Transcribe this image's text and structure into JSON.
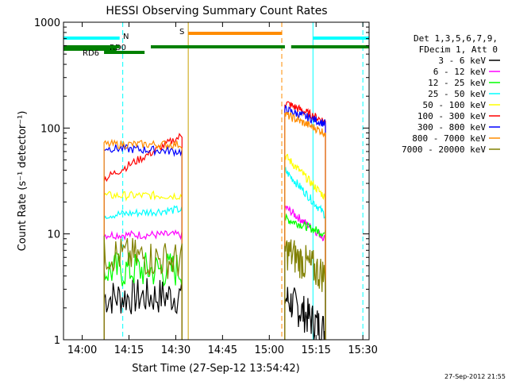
{
  "chart_data": {
    "type": "line",
    "title": "HESSI Observing Summary Count Rates",
    "xlabel": "Start Time (27-Sep-12 13:54:42)",
    "ylabel": "Count Rate (s⁻¹ detector⁻¹)",
    "y_scale": "log",
    "ylim": [
      1,
      1000
    ],
    "xlim": [
      "13:54",
      "15:32"
    ],
    "x_ticks": [
      "14:00",
      "14:15",
      "14:30",
      "14:45",
      "15:00",
      "15:15",
      "15:30"
    ],
    "y_ticks": [
      "1",
      "10",
      "100",
      "1000"
    ],
    "timestamp": "27-Sep-2012 21:55",
    "legend": {
      "header": [
        "Det 1,3,5,6,7,9,",
        "FDecim 1, Att 0"
      ],
      "placement": "right"
    },
    "flags": [
      {
        "label": "RD0",
        "color": "#008000",
        "segments": [
          [
            "13:54",
            "14:11"
          ]
        ]
      },
      {
        "label": "RD6",
        "color": "#008000",
        "segments": [
          [
            "14:07",
            "14:20"
          ]
        ]
      },
      {
        "label": "",
        "color": "#008000",
        "segments": [
          [
            "13:54",
            "14:12"
          ],
          [
            "14:22",
            "15:05"
          ],
          [
            "15:07",
            "15:32"
          ]
        ]
      },
      {
        "label": "N",
        "color": "#00ffff",
        "segments": [
          [
            "13:54",
            "14:12"
          ],
          [
            "15:14",
            "15:32"
          ]
        ]
      },
      {
        "label": "S",
        "color": "#ff8c00",
        "segments": [
          [
            "14:34",
            "15:04"
          ]
        ]
      }
    ],
    "vlines": [
      {
        "t": "13:54",
        "color": "#00ffff",
        "style": "solid"
      },
      {
        "t": "14:13",
        "color": "#00ffff",
        "style": "dashed"
      },
      {
        "t": "14:34",
        "color": "#c8a000",
        "style": "solid"
      },
      {
        "t": "15:04",
        "color": "#ff8c00",
        "style": "dashed"
      },
      {
        "t": "15:14",
        "color": "#00ffff",
        "style": "solid"
      },
      {
        "t": "15:30",
        "color": "#00ffff",
        "style": "dashed"
      }
    ],
    "segments": [
      [
        "14:07",
        "14:32"
      ],
      [
        "15:05",
        "15:18"
      ]
    ],
    "series": [
      {
        "name": "3 - 6 keV",
        "color": "#000000",
        "values": [
          [
            2.5,
            2.6
          ],
          [
            2.5,
            1.2
          ]
        ]
      },
      {
        "name": "6 - 12 keV",
        "color": "#ff00ff",
        "values": [
          [
            9.8,
            9.8
          ],
          [
            18,
            9
          ]
        ]
      },
      {
        "name": "12 - 25 keV",
        "color": "#00ff00",
        "values": [
          [
            4.5,
            4.6
          ],
          [
            14,
            10
          ]
        ]
      },
      {
        "name": "25 - 50 keV",
        "color": "#00ffff",
        "values": [
          [
            15,
            17
          ],
          [
            40,
            15
          ]
        ]
      },
      {
        "name": "50 - 100 keV",
        "color": "#ffff00",
        "values": [
          [
            23,
            23
          ],
          [
            55,
            22
          ]
        ]
      },
      {
        "name": "100 - 300 keV",
        "color": "#ff0000",
        "values": [
          [
            33,
            85
          ],
          [
            175,
            115
          ]
        ]
      },
      {
        "name": "300 - 800 keV",
        "color": "#0000ff",
        "values": [
          [
            65,
            60
          ],
          [
            150,
            110
          ]
        ]
      },
      {
        "name": "800 - 7000 keV",
        "color": "#ff8c00",
        "values": [
          [
            70,
            70
          ],
          [
            135,
            90
          ]
        ]
      },
      {
        "name": "7000 - 20000 keV",
        "color": "#808000",
        "values": [
          [
            6.5,
            5.5
          ],
          [
            7,
            4
          ]
        ]
      }
    ]
  }
}
